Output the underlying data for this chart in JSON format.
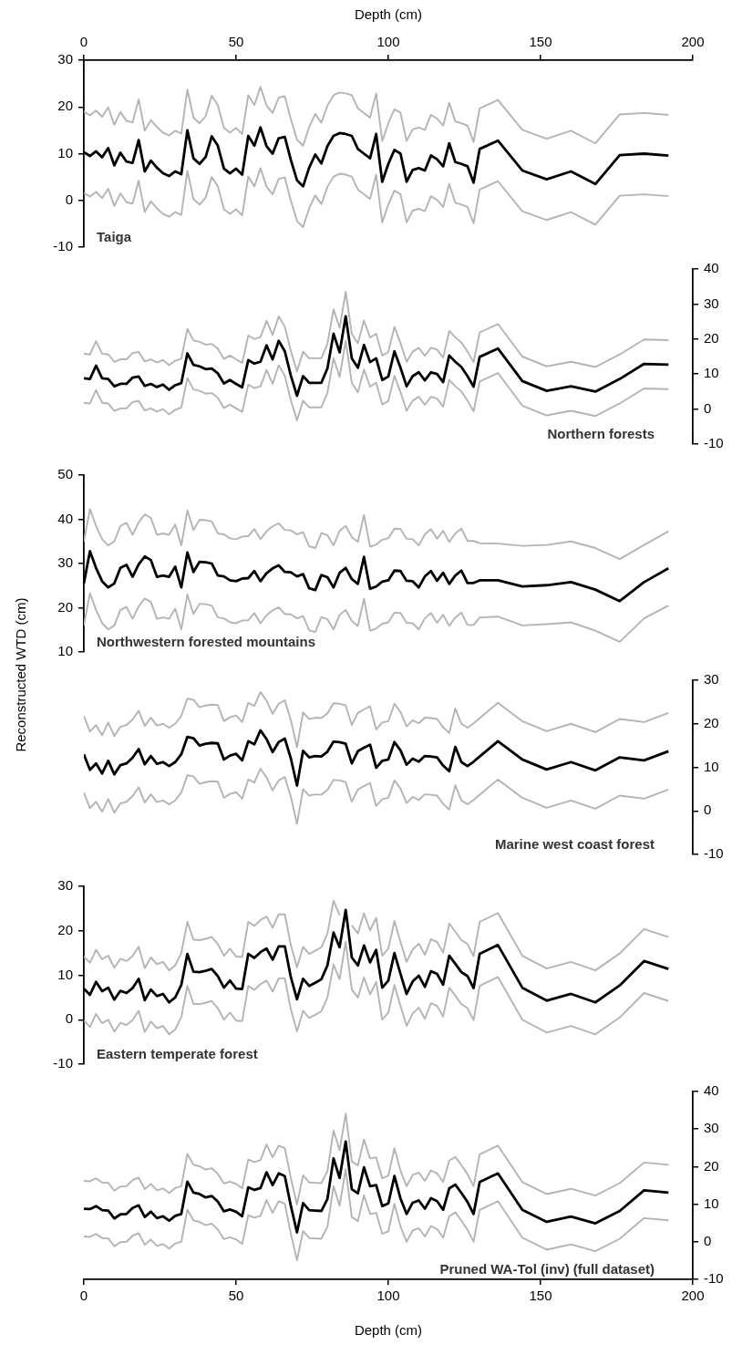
{
  "chart_data": [
    {
      "type": "line",
      "xlabel": "Depth (cm)",
      "xlim": [
        0,
        200
      ],
      "xticks": [
        0,
        50,
        100,
        150,
        200
      ],
      "ylim": [
        -10,
        30
      ],
      "yticks": [
        30,
        20,
        10,
        0,
        -10
      ],
      "marker": "none",
      "annotations": [
        "Taiga"
      ],
      "x": [
        0,
        2,
        4,
        6,
        8,
        10,
        12,
        14,
        16,
        18,
        20,
        22,
        24,
        26,
        28,
        30,
        32,
        34,
        36,
        38,
        40,
        42,
        44,
        46,
        48,
        50,
        52,
        54,
        56,
        58,
        60,
        62,
        64,
        66,
        68,
        70,
        72,
        74,
        76,
        78,
        80,
        82,
        84,
        86,
        88,
        90,
        92,
        94,
        96,
        98,
        100,
        102,
        104,
        106,
        108,
        110,
        112,
        114,
        116,
        118,
        120,
        122,
        124,
        126,
        128,
        130,
        136,
        144,
        152,
        160,
        168,
        176,
        184,
        192
      ],
      "series": [
        {
          "color": "#000000",
          "values": [
            10.3,
            9.5,
            10.5,
            9.2,
            11.2,
            7.5,
            10.2,
            8.3,
            8.0,
            12.9,
            6.2,
            8.5,
            7.0,
            5.8,
            5.2,
            6.2,
            5.6,
            15.0,
            9.0,
            7.8,
            9.3,
            13.7,
            11.7,
            6.8,
            5.8,
            6.8,
            5.5,
            13.8,
            11.7,
            15.6,
            11.6,
            10.0,
            13.3,
            13.6,
            8.6,
            4.3,
            3.0,
            7.0,
            9.8,
            7.9,
            11.6,
            13.8,
            14.4,
            14.2,
            13.8,
            11.0,
            10.0,
            9.0,
            14.2,
            4.0,
            7.8,
            10.8,
            10.0,
            4.0,
            6.5,
            6.9,
            6.4,
            9.6,
            8.8,
            7.3,
            12.2,
            8.2,
            7.8,
            7.3,
            3.8,
            11.0,
            12.8,
            6.4,
            4.5,
            6.2,
            3.5,
            9.7,
            10.0,
            9.6
          ]
        },
        {
          "color": "#b4b4b4",
          "values": [
            19.0,
            18.2,
            19.2,
            17.9,
            19.9,
            16.2,
            18.9,
            17.0,
            16.7,
            21.6,
            14.9,
            17.2,
            15.7,
            14.5,
            13.9,
            14.9,
            14.3,
            23.7,
            17.7,
            16.5,
            18.0,
            22.4,
            20.4,
            15.5,
            14.5,
            15.5,
            14.2,
            22.5,
            20.4,
            24.3,
            20.3,
            18.7,
            22.0,
            22.3,
            17.3,
            13.0,
            11.7,
            15.7,
            18.5,
            16.6,
            20.3,
            22.5,
            23.1,
            22.9,
            22.5,
            19.7,
            18.7,
            17.7,
            22.9,
            12.7,
            16.5,
            19.5,
            18.7,
            12.7,
            15.2,
            15.6,
            15.1,
            18.3,
            17.5,
            16.0,
            20.9,
            16.9,
            16.5,
            16.0,
            12.5,
            19.7,
            21.5,
            15.1,
            13.2,
            14.9,
            12.2,
            18.4,
            18.7,
            18.3
          ]
        },
        {
          "color": "#b4b4b4",
          "values": [
            1.6,
            0.8,
            1.8,
            0.5,
            2.5,
            -1.2,
            1.5,
            -0.4,
            -0.7,
            4.2,
            -2.5,
            -0.2,
            -1.7,
            -2.9,
            -3.5,
            -2.5,
            -3.1,
            6.3,
            0.3,
            -0.9,
            0.6,
            5.0,
            3.0,
            -1.9,
            -2.9,
            -1.9,
            -3.2,
            5.1,
            3.0,
            6.9,
            2.9,
            1.3,
            4.6,
            4.9,
            -0.1,
            -4.4,
            -5.7,
            -1.7,
            1.1,
            -0.8,
            2.9,
            5.1,
            5.7,
            5.5,
            5.1,
            2.3,
            1.3,
            0.3,
            5.5,
            -4.7,
            -0.9,
            2.1,
            1.3,
            -4.7,
            -2.2,
            -1.8,
            -2.3,
            0.9,
            0.1,
            -1.4,
            3.5,
            -0.5,
            -0.9,
            -1.4,
            -4.9,
            2.3,
            4.1,
            -2.3,
            -4.2,
            -2.5,
            -5.2,
            1.0,
            1.3,
            0.9
          ]
        }
      ]
    },
    {
      "type": "line",
      "xlim": [
        0,
        200
      ],
      "y2lim": [
        -10,
        40
      ],
      "y2ticks": [
        40,
        30,
        20,
        10,
        0,
        -10
      ],
      "tick_labels": "y",
      "marker": "none",
      "annotations": [
        "Northern forests"
      ],
      "x": [
        0,
        2,
        4,
        6,
        8,
        10,
        12,
        14,
        16,
        18,
        20,
        22,
        24,
        26,
        28,
        30,
        32,
        34,
        36,
        38,
        40,
        42,
        44,
        46,
        48,
        50,
        52,
        54,
        56,
        58,
        60,
        62,
        64,
        66,
        68,
        70,
        72,
        74,
        76,
        78,
        80,
        82,
        84,
        86,
        88,
        90,
        92,
        94,
        96,
        98,
        100,
        102,
        104,
        106,
        108,
        110,
        112,
        114,
        116,
        118,
        120,
        122,
        124,
        126,
        128,
        130,
        136,
        144,
        152,
        160,
        168,
        176,
        184,
        192
      ],
      "series": [
        {
          "color": "#000000",
          "axis": "y2",
          "values": [
            8.8,
            8.6,
            12.4,
            8.8,
            8.6,
            6.5,
            7.2,
            7.2,
            9.0,
            9.3,
            6.6,
            7.2,
            6.3,
            7.0,
            5.5,
            6.8,
            7.4,
            15.9,
            12.6,
            12.2,
            11.4,
            11.6,
            10.2,
            7.3,
            8.3,
            7.2,
            6.2,
            14.0,
            13.0,
            13.5,
            18.2,
            14.2,
            19.5,
            16.5,
            9.5,
            3.8,
            9.4,
            7.5,
            7.5,
            7.5,
            11.6,
            21.5,
            16.2,
            26.5,
            14.5,
            11.8,
            18.3,
            13.4,
            14.5,
            8.3,
            9.3,
            16.5,
            11.8,
            6.5,
            9.4,
            10.5,
            8.2,
            10.5,
            10.0,
            7.7,
            15.3,
            13.5,
            12.0,
            9.4,
            6.4,
            14.9,
            17.3,
            8.0,
            5.2,
            6.5,
            5.0,
            8.6,
            12.9,
            12.7
          ]
        },
        {
          "color": "#b4b4b4",
          "axis": "y2",
          "values": [
            15.8,
            15.6,
            19.4,
            15.8,
            15.6,
            13.5,
            14.2,
            14.2,
            16.0,
            16.3,
            13.6,
            14.2,
            13.3,
            14.0,
            12.5,
            13.8,
            14.4,
            22.9,
            19.6,
            19.2,
            18.4,
            18.6,
            17.2,
            14.3,
            15.3,
            14.2,
            13.2,
            21.0,
            20.0,
            20.5,
            25.2,
            21.2,
            26.5,
            23.5,
            16.5,
            10.8,
            16.4,
            14.5,
            14.5,
            14.5,
            18.6,
            28.5,
            23.2,
            33.5,
            21.5,
            18.8,
            25.3,
            20.4,
            21.5,
            15.3,
            16.3,
            23.5,
            18.8,
            13.5,
            16.4,
            17.5,
            15.2,
            17.5,
            17.0,
            14.7,
            22.3,
            20.5,
            19.0,
            16.4,
            13.4,
            21.9,
            24.3,
            15.0,
            12.2,
            13.5,
            12.0,
            15.6,
            19.9,
            19.7
          ]
        },
        {
          "color": "#b4b4b4",
          "axis": "y2",
          "values": [
            1.8,
            1.6,
            5.4,
            1.8,
            1.6,
            -0.5,
            0.2,
            0.2,
            2.0,
            2.3,
            -0.4,
            0.2,
            -0.7,
            0.0,
            -1.5,
            -0.2,
            0.4,
            8.9,
            5.6,
            5.2,
            4.4,
            4.6,
            3.2,
            0.3,
            1.3,
            0.2,
            -0.8,
            7.0,
            6.0,
            6.5,
            11.2,
            7.2,
            12.5,
            9.5,
            2.5,
            -3.2,
            2.4,
            0.5,
            0.5,
            0.5,
            4.6,
            14.5,
            9.2,
            19.5,
            7.5,
            4.8,
            11.3,
            6.4,
            7.5,
            1.3,
            2.3,
            9.5,
            4.8,
            -0.5,
            2.4,
            3.5,
            1.2,
            3.5,
            3.0,
            0.7,
            8.3,
            6.5,
            5.0,
            2.4,
            -0.6,
            7.9,
            10.3,
            1.0,
            -1.8,
            -0.5,
            -2.0,
            1.6,
            5.9,
            5.7
          ]
        }
      ]
    },
    {
      "type": "line",
      "xlim": [
        0,
        200
      ],
      "ylim": [
        10,
        50
      ],
      "yticks": [
        50,
        40,
        30,
        20,
        10
      ],
      "tick_labels": "y",
      "marker": "none",
      "ylabel": "Reconstructed WTD (cm)",
      "annotations": [
        "Northwestern forested mountains"
      ],
      "x": [
        0,
        2,
        4,
        6,
        8,
        10,
        12,
        14,
        16,
        18,
        20,
        22,
        24,
        26,
        28,
        30,
        32,
        34,
        36,
        38,
        40,
        42,
        44,
        46,
        48,
        50,
        52,
        54,
        56,
        58,
        60,
        62,
        64,
        66,
        68,
        70,
        72,
        74,
        76,
        78,
        80,
        82,
        84,
        86,
        88,
        90,
        92,
        94,
        96,
        98,
        100,
        102,
        104,
        106,
        108,
        110,
        112,
        114,
        116,
        118,
        120,
        122,
        124,
        126,
        128,
        130,
        136,
        144,
        152,
        160,
        168,
        176,
        184,
        192
      ],
      "series": [
        {
          "color": "#000000",
          "values": [
            25.5,
            32.8,
            29.0,
            26.0,
            24.6,
            25.5,
            29.0,
            29.7,
            27.0,
            29.8,
            31.6,
            30.8,
            27.0,
            27.3,
            27.0,
            29.3,
            24.6,
            32.5,
            28.1,
            30.4,
            30.3,
            30.0,
            27.3,
            27.1,
            26.2,
            26.0,
            26.6,
            26.7,
            28.3,
            26.0,
            27.8,
            28.9,
            29.6,
            28.1,
            28.0,
            27.1,
            27.6,
            24.4,
            24.0,
            27.4,
            26.9,
            24.6,
            27.9,
            29.0,
            26.5,
            25.4,
            31.5,
            24.3,
            24.8,
            25.9,
            26.2,
            28.4,
            28.3,
            26.1,
            26.0,
            24.6,
            27.1,
            28.3,
            26.1,
            27.9,
            25.4,
            27.3,
            28.4,
            25.6,
            25.6,
            26.2,
            26.2,
            24.8,
            25.1,
            25.8,
            24.1,
            21.5,
            25.8,
            28.9
          ]
        },
        {
          "color": "#b4b4b4",
          "values": [
            35.0,
            42.3,
            38.5,
            35.5,
            34.1,
            35.0,
            38.5,
            39.2,
            36.5,
            39.3,
            41.1,
            40.3,
            36.5,
            36.8,
            36.5,
            38.8,
            34.1,
            42.0,
            37.6,
            39.9,
            39.8,
            39.5,
            36.8,
            36.6,
            35.7,
            35.5,
            36.1,
            36.2,
            37.8,
            35.5,
            37.3,
            38.4,
            39.1,
            37.6,
            37.5,
            36.6,
            37.1,
            33.9,
            33.5,
            36.9,
            36.4,
            34.1,
            37.4,
            38.5,
            36.0,
            34.9,
            41.0,
            33.8,
            34.3,
            35.4,
            35.7,
            37.9,
            37.8,
            35.6,
            35.5,
            34.1,
            36.6,
            37.8,
            35.6,
            37.4,
            34.9,
            36.8,
            37.9,
            35.1,
            35.1,
            34.6,
            34.5,
            34.0,
            34.2,
            35.0,
            33.5,
            31.0,
            34.2,
            37.3
          ]
        },
        {
          "color": "#b4b4b4",
          "values": [
            16.0,
            23.3,
            19.5,
            16.5,
            15.1,
            16.0,
            19.5,
            20.2,
            17.5,
            20.3,
            22.1,
            21.3,
            17.5,
            17.8,
            17.5,
            19.8,
            15.1,
            23.0,
            18.6,
            20.9,
            20.8,
            20.5,
            17.8,
            17.6,
            16.7,
            16.5,
            17.1,
            17.2,
            18.8,
            16.5,
            18.3,
            19.4,
            20.1,
            18.6,
            18.5,
            17.6,
            18.1,
            14.9,
            14.5,
            17.9,
            17.4,
            15.1,
            18.4,
            19.5,
            17.0,
            15.9,
            22.0,
            14.8,
            15.3,
            16.4,
            16.7,
            18.9,
            18.8,
            16.6,
            16.5,
            15.1,
            17.6,
            18.8,
            16.6,
            18.4,
            15.9,
            17.8,
            18.9,
            16.1,
            16.1,
            17.8,
            18.0,
            16.0,
            16.3,
            16.7,
            14.8,
            12.3,
            17.6,
            20.5
          ]
        }
      ]
    },
    {
      "type": "line",
      "xlim": [
        0,
        200
      ],
      "y2lim": [
        -10,
        30
      ],
      "y2ticks": [
        30,
        20,
        10,
        0,
        -10
      ],
      "tick_labels": "y",
      "marker": "none",
      "annotations": [
        "Marine west coast forest"
      ],
      "x": [
        0,
        2,
        4,
        6,
        8,
        10,
        12,
        14,
        16,
        18,
        20,
        22,
        24,
        26,
        28,
        30,
        32,
        34,
        36,
        38,
        40,
        42,
        44,
        46,
        48,
        50,
        52,
        54,
        56,
        58,
        60,
        62,
        64,
        66,
        68,
        70,
        72,
        74,
        76,
        78,
        80,
        82,
        84,
        86,
        88,
        90,
        92,
        94,
        96,
        98,
        100,
        102,
        104,
        106,
        108,
        110,
        112,
        114,
        116,
        118,
        120,
        122,
        124,
        126,
        128,
        130,
        136,
        144,
        152,
        160,
        168,
        176,
        184,
        192
      ],
      "series": [
        {
          "color": "#000000",
          "axis": "y2",
          "values": [
            13.0,
            9.4,
            10.9,
            8.6,
            11.5,
            8.4,
            10.5,
            10.9,
            12.2,
            14.2,
            10.7,
            12.6,
            10.8,
            11.2,
            10.3,
            11.2,
            13.0,
            17.0,
            16.7,
            15.0,
            15.4,
            15.6,
            15.5,
            11.8,
            12.7,
            13.1,
            11.6,
            16.0,
            15.3,
            18.5,
            16.5,
            13.5,
            15.8,
            16.6,
            12.0,
            5.8,
            13.8,
            12.3,
            12.6,
            12.5,
            13.6,
            15.9,
            15.8,
            15.4,
            10.9,
            13.7,
            14.5,
            15.2,
            9.9,
            11.5,
            11.8,
            15.8,
            13.9,
            10.6,
            12.0,
            11.3,
            12.6,
            12.5,
            12.3,
            10.4,
            9.1,
            14.7,
            11.2,
            10.3,
            11.3,
            12.5,
            16.0,
            11.8,
            9.5,
            11.2,
            9.3,
            12.3,
            11.6,
            13.7
          ]
        },
        {
          "color": "#b4b4b4",
          "axis": "y2",
          "values": [
            21.8,
            18.2,
            19.7,
            17.4,
            20.3,
            17.2,
            19.3,
            19.7,
            21.0,
            23.0,
            19.5,
            21.4,
            19.6,
            20.0,
            19.1,
            20.0,
            21.8,
            25.8,
            25.5,
            23.8,
            24.2,
            24.4,
            24.3,
            20.6,
            21.5,
            21.9,
            20.4,
            24.8,
            24.1,
            27.3,
            25.3,
            22.3,
            24.6,
            25.4,
            20.8,
            14.6,
            22.6,
            21.1,
            21.4,
            21.3,
            22.4,
            24.7,
            24.6,
            24.2,
            19.7,
            22.5,
            23.3,
            24.0,
            18.7,
            20.3,
            20.6,
            24.6,
            22.7,
            19.4,
            20.8,
            20.1,
            21.4,
            21.3,
            21.1,
            19.2,
            17.9,
            23.5,
            20.0,
            19.1,
            20.1,
            21.3,
            24.8,
            20.6,
            18.3,
            20.0,
            18.1,
            21.1,
            20.4,
            22.5
          ]
        },
        {
          "color": "#b4b4b4",
          "axis": "y2",
          "values": [
            4.2,
            0.6,
            2.1,
            -0.2,
            2.7,
            -0.4,
            1.7,
            2.1,
            3.4,
            5.4,
            1.9,
            3.8,
            2.0,
            2.4,
            1.5,
            2.4,
            4.2,
            8.2,
            7.9,
            6.2,
            6.6,
            6.8,
            6.7,
            3.0,
            3.9,
            4.3,
            2.8,
            7.2,
            6.5,
            9.7,
            7.7,
            4.7,
            7.0,
            7.8,
            3.2,
            -3.0,
            5.0,
            3.5,
            3.8,
            3.7,
            4.8,
            7.1,
            7.0,
            6.6,
            2.1,
            4.9,
            5.7,
            6.4,
            1.1,
            2.7,
            3.0,
            7.0,
            5.1,
            1.8,
            3.2,
            2.5,
            3.8,
            3.7,
            3.5,
            1.6,
            0.3,
            5.9,
            2.4,
            1.5,
            2.5,
            3.7,
            7.2,
            3.0,
            0.7,
            2.4,
            0.5,
            3.5,
            2.8,
            4.9
          ]
        }
      ]
    },
    {
      "type": "line",
      "xlim": [
        0,
        200
      ],
      "ylim": [
        -10,
        30
      ],
      "yticks": [
        30,
        20,
        10,
        0,
        -10
      ],
      "tick_labels": "y",
      "marker": "none",
      "annotations": [
        "Eastern temperate forest"
      ],
      "x": [
        0,
        2,
        4,
        6,
        8,
        10,
        12,
        14,
        16,
        18,
        20,
        22,
        24,
        26,
        28,
        30,
        32,
        34,
        36,
        38,
        40,
        42,
        44,
        46,
        48,
        50,
        52,
        54,
        56,
        58,
        60,
        62,
        64,
        66,
        68,
        70,
        72,
        74,
        76,
        78,
        80,
        82,
        84,
        86,
        88,
        90,
        92,
        94,
        96,
        98,
        100,
        102,
        104,
        106,
        108,
        110,
        112,
        114,
        116,
        118,
        120,
        122,
        124,
        126,
        128,
        130,
        136,
        144,
        152,
        160,
        168,
        176,
        184,
        192
      ],
      "series": [
        {
          "color": "#000000",
          "values": [
            7.0,
            5.6,
            8.5,
            6.4,
            7.2,
            4.5,
            6.5,
            6.0,
            7.1,
            9.2,
            4.4,
            6.8,
            5.3,
            5.8,
            3.9,
            5.0,
            7.8,
            14.8,
            10.8,
            10.7,
            11.0,
            11.4,
            9.8,
            7.2,
            8.8,
            7.0,
            6.9,
            14.8,
            13.9,
            15.2,
            16.0,
            13.5,
            16.5,
            16.5,
            9.5,
            4.6,
            9.2,
            7.6,
            8.3,
            9.1,
            12.2,
            19.6,
            16.3,
            24.7,
            14.0,
            12.2,
            16.7,
            12.9,
            15.7,
            7.2,
            8.8,
            15.0,
            10.3,
            5.8,
            8.6,
            9.9,
            7.4,
            10.9,
            10.3,
            7.9,
            14.4,
            12.6,
            10.7,
            9.8,
            7.1,
            14.8,
            16.8,
            7.2,
            4.3,
            5.8,
            3.9,
            7.7,
            13.2,
            11.4
          ]
        },
        {
          "color": "#b4b4b4",
          "values": [
            14.2,
            12.8,
            15.7,
            13.6,
            14.4,
            11.7,
            13.7,
            13.2,
            14.3,
            16.4,
            11.6,
            14.0,
            12.5,
            13.0,
            11.1,
            12.2,
            15.0,
            22.0,
            18.0,
            17.9,
            18.2,
            18.6,
            17.0,
            14.4,
            16.0,
            14.2,
            14.1,
            22.0,
            21.1,
            22.4,
            23.2,
            20.7,
            23.7,
            23.7,
            16.7,
            11.8,
            16.4,
            14.8,
            15.5,
            16.3,
            19.4,
            26.8,
            23.5,
            null,
            21.2,
            19.4,
            23.9,
            20.1,
            22.9,
            14.4,
            16.0,
            22.2,
            17.5,
            13.0,
            15.8,
            17.1,
            14.6,
            18.1,
            17.5,
            15.1,
            21.6,
            19.8,
            17.9,
            17.0,
            14.3,
            22.0,
            24.0,
            14.4,
            11.5,
            13.0,
            11.1,
            14.9,
            20.4,
            18.6
          ]
        },
        {
          "color": "#b4b4b4",
          "values": [
            -0.2,
            -1.6,
            1.3,
            -0.8,
            0.0,
            -2.7,
            -0.7,
            -1.2,
            -0.1,
            2.0,
            -2.8,
            -0.4,
            -1.9,
            -1.4,
            -3.3,
            -2.2,
            0.6,
            7.6,
            3.6,
            3.5,
            3.8,
            4.2,
            2.6,
            0.0,
            1.6,
            -0.2,
            -0.3,
            7.6,
            6.7,
            8.0,
            8.8,
            6.3,
            9.3,
            9.3,
            2.3,
            -2.6,
            2.0,
            0.4,
            1.1,
            1.9,
            5.0,
            12.4,
            9.1,
            17.5,
            6.8,
            5.0,
            9.5,
            5.7,
            8.5,
            0.0,
            1.6,
            7.8,
            3.1,
            -1.4,
            1.4,
            2.7,
            0.2,
            3.7,
            3.1,
            0.7,
            7.2,
            5.4,
            3.5,
            2.6,
            -0.1,
            7.6,
            9.6,
            0.0,
            -2.9,
            -1.4,
            -3.3,
            0.5,
            6.0,
            4.2
          ]
        }
      ]
    },
    {
      "type": "line",
      "xlabel": "Depth (cm)",
      "xlim": [
        0,
        200
      ],
      "xticks": [
        0,
        50,
        100,
        150,
        200
      ],
      "y2lim": [
        -10,
        40
      ],
      "y2ticks": [
        40,
        30,
        20,
        10,
        0,
        -10
      ],
      "marker": "none",
      "annotations": [
        "Pruned WA-Tol (inv) (full dataset)"
      ],
      "x": [
        0,
        2,
        4,
        6,
        8,
        10,
        12,
        14,
        16,
        18,
        20,
        22,
        24,
        26,
        28,
        30,
        32,
        34,
        36,
        38,
        40,
        42,
        44,
        46,
        48,
        50,
        52,
        54,
        56,
        58,
        60,
        62,
        64,
        66,
        68,
        70,
        72,
        74,
        76,
        78,
        80,
        82,
        84,
        86,
        88,
        90,
        92,
        94,
        96,
        98,
        100,
        102,
        104,
        106,
        108,
        110,
        112,
        114,
        116,
        118,
        120,
        122,
        124,
        126,
        128,
        130,
        136,
        144,
        152,
        160,
        168,
        176,
        184,
        192
      ],
      "series": [
        {
          "color": "#000000",
          "axis": "y2",
          "values": [
            8.8,
            8.7,
            9.5,
            8.4,
            8.3,
            6.2,
            7.3,
            7.4,
            9.0,
            9.7,
            6.6,
            8.0,
            6.3,
            6.8,
            5.6,
            6.9,
            7.4,
            16.0,
            13.1,
            12.7,
            11.8,
            12.2,
            10.7,
            8.1,
            8.6,
            8.0,
            6.8,
            14.5,
            13.8,
            14.3,
            18.5,
            15.1,
            18.2,
            17.5,
            9.5,
            2.5,
            10.3,
            8.4,
            8.3,
            8.2,
            11.4,
            22.2,
            17.0,
            26.7,
            14.0,
            12.9,
            19.8,
            14.8,
            15.1,
            9.5,
            10.2,
            17.5,
            11.5,
            7.4,
            10.4,
            11.0,
            8.8,
            11.6,
            10.8,
            8.5,
            14.2,
            15.2,
            13.0,
            10.6,
            7.4,
            15.9,
            18.2,
            8.5,
            5.3,
            6.7,
            4.9,
            8.2,
            13.7,
            13.1
          ]
        },
        {
          "color": "#b4b4b4",
          "axis": "y2",
          "values": [
            16.2,
            16.1,
            16.9,
            15.8,
            15.7,
            13.6,
            14.7,
            14.8,
            16.4,
            17.1,
            14.0,
            15.4,
            13.7,
            14.2,
            13.0,
            14.3,
            14.8,
            23.4,
            20.5,
            20.1,
            19.2,
            19.6,
            18.1,
            15.5,
            16.0,
            15.4,
            14.2,
            21.9,
            21.2,
            21.7,
            25.9,
            22.5,
            25.6,
            24.9,
            16.9,
            9.9,
            17.7,
            15.8,
            15.7,
            15.6,
            18.8,
            29.6,
            24.4,
            34.1,
            21.4,
            20.3,
            27.2,
            22.2,
            22.5,
            16.9,
            17.6,
            24.9,
            18.9,
            14.8,
            17.8,
            18.4,
            16.2,
            19.0,
            18.2,
            15.9,
            21.6,
            22.6,
            20.4,
            18.0,
            14.8,
            23.3,
            25.6,
            15.9,
            12.7,
            14.1,
            12.3,
            15.6,
            21.1,
            20.5
          ]
        },
        {
          "color": "#b4b4b4",
          "axis": "y2",
          "values": [
            1.4,
            1.3,
            2.1,
            1.0,
            0.9,
            -1.2,
            -0.1,
            0.0,
            1.6,
            2.3,
            -0.8,
            0.6,
            -1.1,
            -0.6,
            -1.8,
            -0.5,
            0.0,
            8.6,
            5.7,
            5.3,
            4.4,
            4.8,
            3.3,
            0.7,
            1.2,
            0.6,
            -0.6,
            7.1,
            6.4,
            6.9,
            11.1,
            7.7,
            10.8,
            10.1,
            2.1,
            -4.9,
            2.9,
            1.0,
            0.9,
            0.8,
            4.0,
            14.8,
            9.6,
            19.3,
            6.6,
            5.5,
            12.4,
            7.4,
            7.7,
            2.1,
            2.8,
            10.1,
            4.1,
            0.0,
            3.0,
            3.6,
            1.4,
            4.2,
            3.4,
            1.1,
            6.8,
            7.8,
            5.6,
            3.2,
            0.0,
            8.5,
            10.8,
            1.1,
            -2.1,
            -0.7,
            -2.5,
            0.8,
            6.3,
            5.7
          ]
        }
      ]
    }
  ]
}
